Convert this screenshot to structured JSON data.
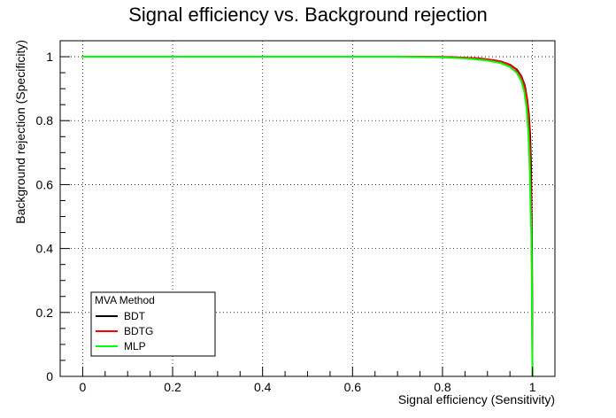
{
  "chart_data": {
    "type": "line",
    "title": "Signal efficiency vs. Background rejection",
    "xlabel": "Signal efficiency (Sensitivity)",
    "ylabel": "Background rejection (Specificity)",
    "xlim": [
      -0.05,
      1.05
    ],
    "ylim": [
      0,
      1.05
    ],
    "x_ticks": [
      {
        "value": 0,
        "label": "0"
      },
      {
        "value": 0.2,
        "label": "0.2"
      },
      {
        "value": 0.4,
        "label": "0.4"
      },
      {
        "value": 0.6,
        "label": "0.6"
      },
      {
        "value": 0.8,
        "label": "0.8"
      },
      {
        "value": 1,
        "label": "1"
      }
    ],
    "y_ticks": [
      {
        "value": 0,
        "label": "0"
      },
      {
        "value": 0.2,
        "label": "0.2"
      },
      {
        "value": 0.4,
        "label": "0.4"
      },
      {
        "value": 0.6,
        "label": "0.6"
      },
      {
        "value": 0.8,
        "label": "0.8"
      },
      {
        "value": 1,
        "label": "1"
      }
    ],
    "grid": true,
    "legend": {
      "title": "MVA Method",
      "placement": "bottom-left"
    },
    "series": [
      {
        "name": "BDT",
        "color": "#000000",
        "points": [
          [
            0.0,
            1.0
          ],
          [
            0.7,
            1.0
          ],
          [
            0.8,
            0.999
          ],
          [
            0.86,
            0.996
          ],
          [
            0.9,
            0.992
          ],
          [
            0.93,
            0.985
          ],
          [
            0.95,
            0.975
          ],
          [
            0.965,
            0.96
          ],
          [
            0.975,
            0.94
          ],
          [
            0.983,
            0.91
          ],
          [
            0.988,
            0.87
          ],
          [
            0.992,
            0.82
          ],
          [
            0.995,
            0.75
          ],
          [
            0.997,
            0.65
          ],
          [
            0.998,
            0.52
          ],
          [
            0.999,
            0.4
          ],
          [
            1.0,
            0.0
          ]
        ]
      },
      {
        "name": "BDTG",
        "color": "#ff0000",
        "points": [
          [
            0.0,
            1.0
          ],
          [
            0.72,
            1.0
          ],
          [
            0.82,
            0.999
          ],
          [
            0.88,
            0.995
          ],
          [
            0.92,
            0.988
          ],
          [
            0.945,
            0.978
          ],
          [
            0.962,
            0.962
          ],
          [
            0.974,
            0.94
          ],
          [
            0.982,
            0.91
          ],
          [
            0.988,
            0.87
          ],
          [
            0.992,
            0.8
          ],
          [
            0.995,
            0.7
          ],
          [
            0.997,
            0.55
          ],
          [
            0.998,
            0.4
          ],
          [
            0.999,
            0.31
          ],
          [
            1.0,
            0.0
          ]
        ]
      },
      {
        "name": "MLP",
        "color": "#00ff00",
        "points": [
          [
            0.0,
            1.0
          ],
          [
            0.7,
            1.0
          ],
          [
            0.8,
            0.998
          ],
          [
            0.86,
            0.994
          ],
          [
            0.9,
            0.988
          ],
          [
            0.93,
            0.98
          ],
          [
            0.95,
            0.968
          ],
          [
            0.965,
            0.95
          ],
          [
            0.975,
            0.925
          ],
          [
            0.982,
            0.89
          ],
          [
            0.987,
            0.84
          ],
          [
            0.991,
            0.76
          ],
          [
            0.994,
            0.65
          ],
          [
            0.996,
            0.52
          ],
          [
            0.998,
            0.43
          ],
          [
            1.0,
            0.0
          ]
        ]
      }
    ]
  }
}
